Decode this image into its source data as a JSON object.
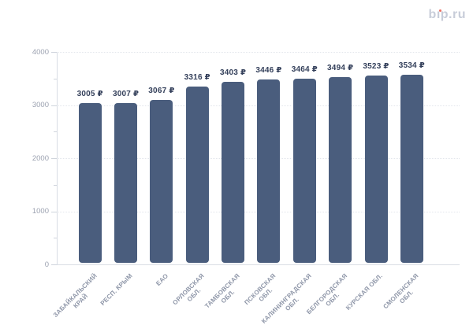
{
  "logo": {
    "text": "bip.ru",
    "pre": "b",
    "stem": "ı",
    "post": "p.ru",
    "text_color": "#c8cdd9",
    "dot_color": "#ee6e5f"
  },
  "chart_data": {
    "type": "bar",
    "title": "",
    "xlabel": "",
    "ylabel": "",
    "categories": [
      [
        "ЗАБАЙКАЛЬСКИЙ",
        "КРАЙ"
      ],
      [
        "РЕСП. КРЫМ"
      ],
      [
        "ЕАО"
      ],
      [
        "ОРЛОВСКАЯ",
        "ОБЛ."
      ],
      [
        "ТАМБОВСКАЯ",
        "ОБЛ."
      ],
      [
        "ПСКОВСКАЯ",
        "ОБЛ."
      ],
      [
        "КАЛИНИНГРАДСКАЯ",
        "ОБЛ."
      ],
      [
        "БЕЛГОРОДСКАЯ",
        "ОБЛ."
      ],
      [
        "КУРСКАЯ ОБЛ."
      ],
      [
        "СМОЛЕНСКАЯ",
        "ОБЛ."
      ]
    ],
    "values": [
      3005,
      3007,
      3067,
      3316,
      3403,
      3446,
      3464,
      3494,
      3523,
      3534
    ],
    "value_labels": [
      "3005 ₽",
      "3007 ₽",
      "3067 ₽",
      "3316 ₽",
      "3403 ₽",
      "3446 ₽",
      "3464 ₽",
      "3494 ₽",
      "3523 ₽",
      "3534 ₽"
    ],
    "ylim": [
      0,
      4000
    ],
    "yticks": [
      0,
      1000,
      2000,
      3000,
      4000
    ],
    "minor_yticks": [
      500,
      1500,
      2500,
      3500
    ],
    "grid": "horizontal-dotted",
    "legend": "none",
    "bar_color": "#4a5d7d",
    "value_label_color": "#333f5a",
    "ytick_label_color": "#9ba1b0",
    "category_label_color": "#8e96a8"
  }
}
